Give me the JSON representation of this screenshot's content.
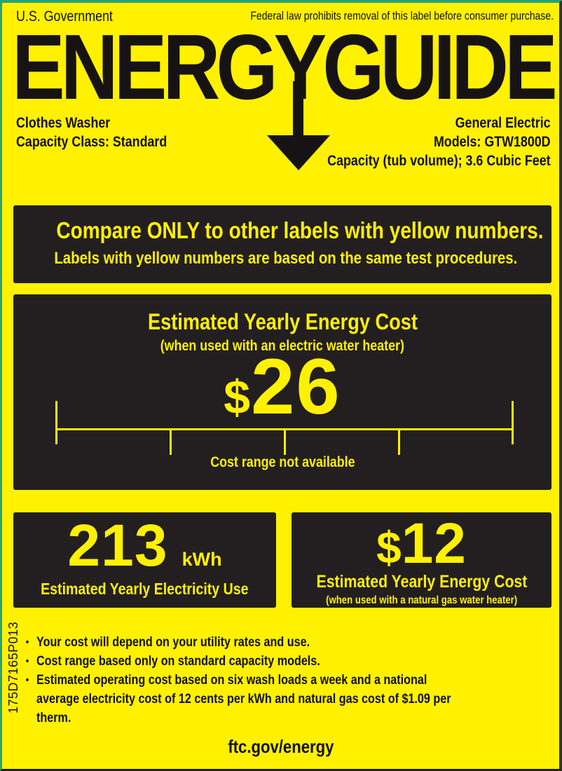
{
  "colors": {
    "background": "#FFF100",
    "panel": "#231F20",
    "panel_text": "#FFF100",
    "ink": "#141011",
    "border_green": "#27A376"
  },
  "header": {
    "government": "U.S. Government",
    "law_notice": "Federal law prohibits removal of this label before consumer purchase."
  },
  "logo": {
    "title": "ENERGYGUIDE",
    "arrow_icon": "down-arrow"
  },
  "product": {
    "type": "Clothes Washer",
    "capacity_class": "Capacity Class: Standard"
  },
  "manufacturer": {
    "brand": "General Electric",
    "models": "Models: GTW1800D",
    "capacity": "Capacity (tub volume); 3.6 Cubic Feet"
  },
  "compare_banner": {
    "line1": "Compare ONLY to other labels with yellow numbers.",
    "line2": "Labels with yellow numbers are based on the same test procedures."
  },
  "main_cost": {
    "title": "Estimated Yearly Energy Cost",
    "subtitle": "(when used with an electric water heater)",
    "currency": "$",
    "amount": "26",
    "range_note": "Cost range not available"
  },
  "electricity": {
    "amount": "213",
    "unit": "kWh",
    "label": "Estimated Yearly Electricity Use"
  },
  "gas": {
    "currency": "$",
    "amount": "12",
    "label": "Estimated Yearly Energy Cost",
    "sublabel": "(when used with a natural gas water heater)"
  },
  "footnote_bullet": "•",
  "footnotes": [
    "Your cost will depend on your utility rates and use.",
    "Cost range based only on standard capacity models.",
    "Estimated operating cost based on six wash loads a week and a national average electricity cost of 12 cents per kWh and natural gas cost of $1.09 per therm."
  ],
  "part_number": "175D7165P013",
  "footer": {
    "url": "ftc.gov/energy"
  }
}
